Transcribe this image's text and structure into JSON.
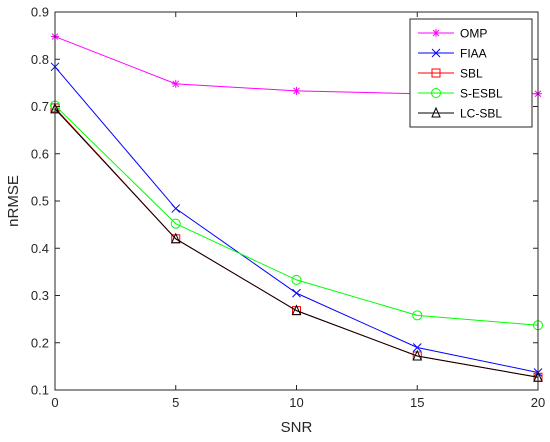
{
  "chart_data": {
    "type": "line",
    "title": "",
    "xlabel": "SNR",
    "ylabel": "nRMSE",
    "x": [
      0,
      5,
      10,
      15,
      20
    ],
    "xlim": [
      0,
      20
    ],
    "ylim": [
      0.1,
      0.9
    ],
    "xticks": [
      "0",
      "5",
      "10",
      "15",
      "20"
    ],
    "yticks": [
      "0.1",
      "0.2",
      "0.3",
      "0.4",
      "0.5",
      "0.6",
      "0.7",
      "0.8",
      "0.9"
    ],
    "grid": false,
    "legend_position": "top-right",
    "series": [
      {
        "name": "OMP",
        "color": "#ff00ff",
        "marker": "asterisk",
        "values": [
          0.848,
          0.748,
          0.733,
          0.727,
          0.727
        ]
      },
      {
        "name": "FIAA",
        "color": "#0000ff",
        "marker": "x",
        "values": [
          0.784,
          0.484,
          0.305,
          0.19,
          0.137
        ]
      },
      {
        "name": "SBL",
        "color": "#ff0000",
        "marker": "square",
        "values": [
          0.697,
          0.42,
          0.268,
          0.172,
          0.127
        ]
      },
      {
        "name": "S-ESBL",
        "color": "#00ff00",
        "marker": "circle",
        "values": [
          0.702,
          0.452,
          0.333,
          0.258,
          0.237
        ]
      },
      {
        "name": "LC-SBL",
        "color": "#000000",
        "marker": "triangle",
        "values": [
          0.695,
          0.42,
          0.268,
          0.172,
          0.127
        ]
      }
    ]
  }
}
